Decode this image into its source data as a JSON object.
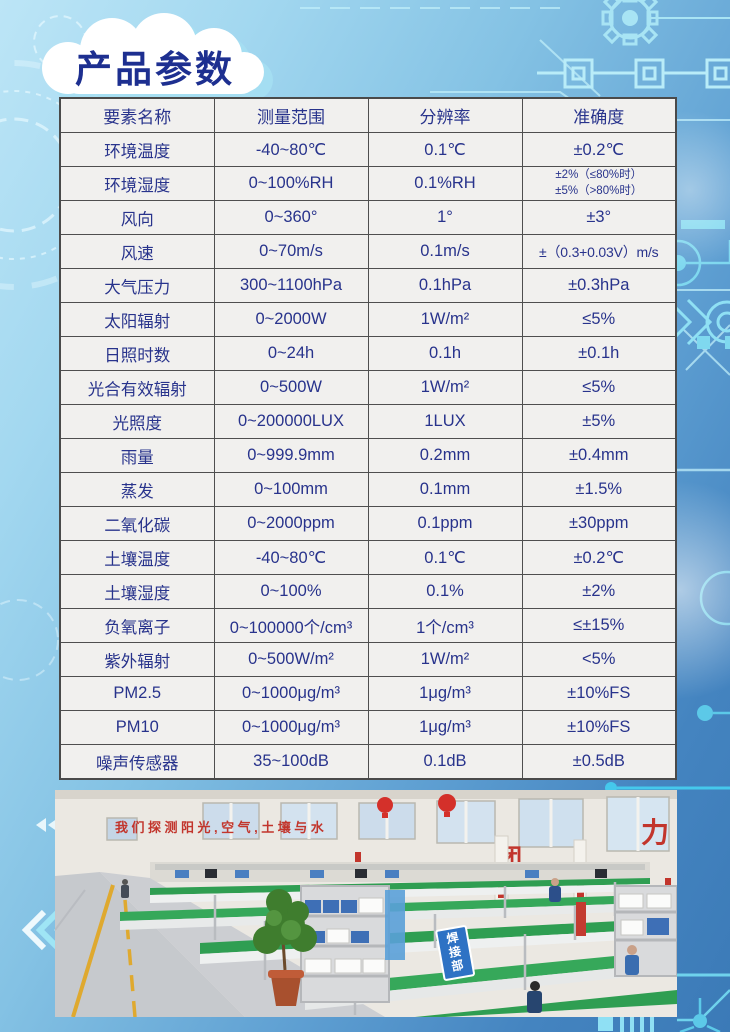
{
  "page": {
    "title": "产品参数"
  },
  "colors": {
    "title_navy": "#1d2f90",
    "table_text_navy": "#28338c",
    "table_cell_bg": "#f1f0ee",
    "table_border": "#4a4a4a",
    "background_light_blue": "#a3d8f0",
    "background_dark_blue": "#3b7ab7",
    "circuit_cyan": "#8fe0f4",
    "conveyor_green": "#2f9e52",
    "banner_red": "#c2352c"
  },
  "table": {
    "headers": [
      "要素名称",
      "测量范围",
      "分辨率",
      "准确度"
    ],
    "rows": [
      [
        "环境温度",
        "-40~80℃",
        "0.1℃",
        "±0.2℃"
      ],
      [
        "环境湿度",
        "0~100%RH",
        "0.1%RH",
        "±2%（≤80%时）\n±5%（>80%时）"
      ],
      [
        "风向",
        "0~360°",
        "1°",
        "±3°"
      ],
      [
        "风速",
        "0~70m/s",
        "0.1m/s",
        "±（0.3+0.03V）m/s"
      ],
      [
        "大气压力",
        "300~1100hPa",
        "0.1hPa",
        "±0.3hPa"
      ],
      [
        "太阳辐射",
        "0~2000W",
        "1W/m²",
        "≤5%"
      ],
      [
        "日照时数",
        "0~24h",
        "0.1h",
        "±0.1h"
      ],
      [
        "光合有效辐射",
        "0~500W",
        "1W/m²",
        "≤5%"
      ],
      [
        "光照度",
        "0~200000LUX",
        "1LUX",
        "±5%"
      ],
      [
        "雨量",
        "0~999.9mm",
        "0.2mm",
        "±0.4mm"
      ],
      [
        "蒸发",
        "0~100mm",
        "0.1mm",
        "±1.5%"
      ],
      [
        "二氧化碳",
        "0~2000ppm",
        "0.1ppm",
        "±30ppm"
      ],
      [
        "土壤温度",
        "-40~80℃",
        "0.1℃",
        "±0.2℃"
      ],
      [
        "土壤湿度",
        "0~100%",
        "0.1%",
        "±2%"
      ],
      [
        "负氧离子",
        "0~100000个/cm³",
        "1个/cm³",
        "≤±15%"
      ],
      [
        "紫外辐射",
        "0~500W/m²",
        "1W/m²",
        "<5%"
      ],
      [
        "PM2.5",
        "0~1000μg/m³",
        "1μg/m³",
        "±10%FS"
      ],
      [
        "PM10",
        "0~1000μg/m³",
        "1μg/m³",
        "±10%FS"
      ],
      [
        "噪声传感器",
        "35~100dB",
        "0.1dB",
        "±0.5dB"
      ]
    ]
  },
  "photo": {
    "wall_slogan": "我们探测阳光,空气,土壤与水",
    "wall_char_1": "团",
    "wall_char_2": "力",
    "department_sign": "焊接部"
  }
}
